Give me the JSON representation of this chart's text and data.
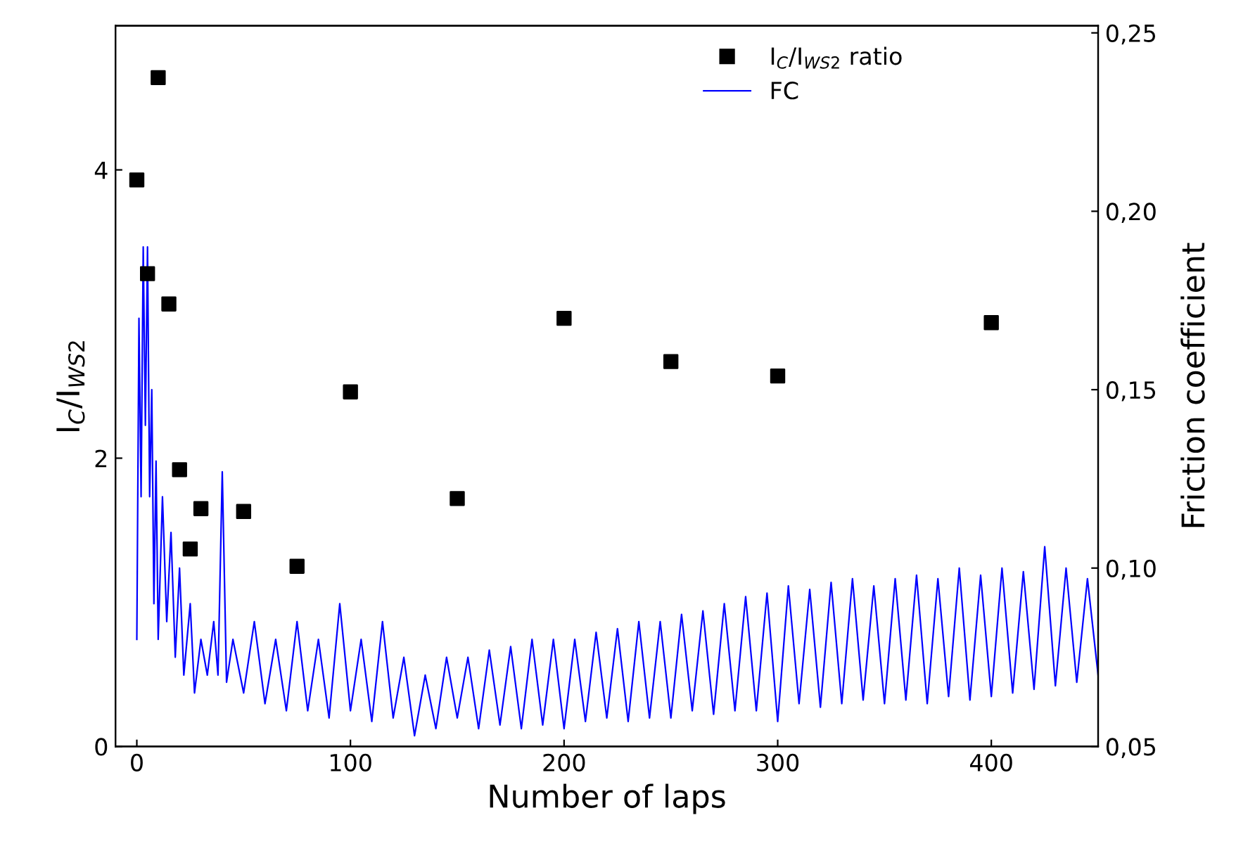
{
  "chart_data": {
    "type": "scatter",
    "xlabel": "Number of laps",
    "ylabel": "I$_{C}$/I$_{WS2}$",
    "y2label": "Friction coefficient",
    "xlim": [
      -10,
      450
    ],
    "xticks": [
      0,
      100,
      200,
      300,
      400
    ],
    "ylim": [
      0,
      5
    ],
    "yticks": [
      0,
      2,
      4
    ],
    "y2lim": [
      0.05,
      0.252
    ],
    "y2ticks": [
      {
        "value": 0.05,
        "label": "0,05"
      },
      {
        "value": 0.1,
        "label": "0,10"
      },
      {
        "value": 0.15,
        "label": "0,15"
      },
      {
        "value": 0.2,
        "label": "0,20"
      },
      {
        "value": 0.25,
        "label": "0,25"
      }
    ],
    "grid": false,
    "legend": "top",
    "series": [
      {
        "name": "I$_{C}$/I$_{WS2}$ ratio",
        "marker": "square",
        "color": "#000000",
        "x": [
          0,
          5,
          10,
          15,
          20,
          25,
          30,
          50,
          75,
          100,
          150,
          200,
          250,
          300,
          400
        ],
        "values": [
          3.93,
          3.28,
          4.64,
          3.07,
          1.92,
          1.37,
          1.65,
          1.63,
          1.25,
          2.46,
          1.72,
          2.97,
          2.67,
          2.57,
          2.94
        ]
      },
      {
        "name": "FC",
        "type": "line",
        "axis": "y2",
        "marker": "none",
        "line_style": "solid",
        "color": "#0000ff",
        "x": [
          0,
          1,
          2,
          3,
          4,
          5,
          6,
          7,
          8,
          9,
          10,
          12,
          14,
          16,
          18,
          20,
          22,
          25,
          27,
          30,
          33,
          36,
          38,
          40,
          42,
          45,
          50,
          55,
          60,
          65,
          70,
          75,
          80,
          85,
          90,
          95,
          100,
          105,
          110,
          115,
          120,
          125,
          130,
          135,
          140,
          145,
          150,
          155,
          160,
          165,
          170,
          175,
          180,
          185,
          190,
          195,
          200,
          205,
          210,
          215,
          220,
          225,
          230,
          235,
          240,
          245,
          250,
          255,
          260,
          265,
          270,
          275,
          280,
          285,
          290,
          295,
          300,
          305,
          310,
          315,
          320,
          325,
          330,
          335,
          340,
          345,
          350,
          355,
          360,
          365,
          370,
          375,
          380,
          385,
          390,
          395,
          400,
          405,
          410,
          415,
          420,
          425,
          430,
          435,
          440,
          445,
          450
        ],
        "values": [
          0.08,
          0.17,
          0.12,
          0.19,
          0.14,
          0.19,
          0.12,
          0.15,
          0.09,
          0.13,
          0.08,
          0.12,
          0.085,
          0.11,
          0.075,
          0.1,
          0.07,
          0.09,
          0.065,
          0.08,
          0.07,
          0.085,
          0.07,
          0.127,
          0.068,
          0.08,
          0.065,
          0.085,
          0.062,
          0.08,
          0.06,
          0.085,
          0.06,
          0.08,
          0.058,
          0.09,
          0.06,
          0.08,
          0.057,
          0.085,
          0.058,
          0.075,
          0.053,
          0.07,
          0.055,
          0.075,
          0.058,
          0.075,
          0.055,
          0.077,
          0.056,
          0.078,
          0.055,
          0.08,
          0.056,
          0.08,
          0.055,
          0.08,
          0.057,
          0.082,
          0.058,
          0.083,
          0.057,
          0.085,
          0.058,
          0.085,
          0.058,
          0.087,
          0.06,
          0.088,
          0.059,
          0.09,
          0.06,
          0.092,
          0.06,
          0.093,
          0.057,
          0.095,
          0.062,
          0.094,
          0.061,
          0.096,
          0.062,
          0.097,
          0.063,
          0.095,
          0.062,
          0.097,
          0.063,
          0.098,
          0.062,
          0.097,
          0.064,
          0.1,
          0.063,
          0.098,
          0.064,
          0.1,
          0.065,
          0.099,
          0.066,
          0.106,
          0.067,
          0.1,
          0.068,
          0.097,
          0.07
        ]
      }
    ]
  }
}
